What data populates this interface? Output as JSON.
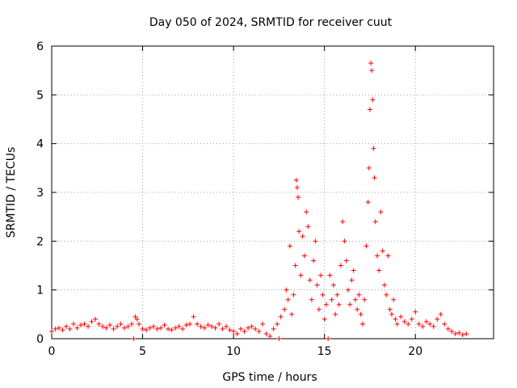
{
  "chart_data": {
    "type": "scatter",
    "title": "Day 050 of 2024, SRMTID for receiver cuut",
    "xlabel": "GPS time / hours",
    "ylabel": "SRMTID / TECUs",
    "xlim": [
      0,
      24.3
    ],
    "ylim": [
      0,
      6
    ],
    "xticks": [
      0,
      5,
      10,
      15,
      20
    ],
    "yticks": [
      0,
      1,
      2,
      3,
      4,
      5,
      6
    ],
    "grid": true,
    "marker": "plus",
    "color": "#ff0000",
    "series": [
      {
        "name": "SRMTID",
        "points": [
          [
            0.0,
            0.15
          ],
          [
            0.2,
            0.2
          ],
          [
            0.4,
            0.22
          ],
          [
            0.6,
            0.18
          ],
          [
            0.8,
            0.25
          ],
          [
            1.0,
            0.2
          ],
          [
            1.2,
            0.3
          ],
          [
            1.4,
            0.22
          ],
          [
            1.6,
            0.28
          ],
          [
            1.8,
            0.3
          ],
          [
            2.0,
            0.25
          ],
          [
            2.2,
            0.35
          ],
          [
            2.4,
            0.4
          ],
          [
            2.6,
            0.3
          ],
          [
            2.8,
            0.25
          ],
          [
            3.0,
            0.22
          ],
          [
            3.2,
            0.28
          ],
          [
            3.4,
            0.2
          ],
          [
            3.6,
            0.25
          ],
          [
            3.8,
            0.3
          ],
          [
            4.0,
            0.22
          ],
          [
            4.2,
            0.25
          ],
          [
            4.4,
            0.3
          ],
          [
            4.5,
            0.0
          ],
          [
            4.6,
            0.45
          ],
          [
            4.7,
            0.4
          ],
          [
            4.8,
            0.3
          ],
          [
            5.0,
            0.2
          ],
          [
            5.2,
            0.18
          ],
          [
            5.4,
            0.22
          ],
          [
            5.6,
            0.25
          ],
          [
            5.8,
            0.2
          ],
          [
            6.0,
            0.22
          ],
          [
            6.2,
            0.28
          ],
          [
            6.4,
            0.2
          ],
          [
            6.6,
            0.18
          ],
          [
            6.8,
            0.22
          ],
          [
            7.0,
            0.25
          ],
          [
            7.2,
            0.2
          ],
          [
            7.4,
            0.28
          ],
          [
            7.6,
            0.3
          ],
          [
            7.8,
            0.45
          ],
          [
            8.0,
            0.3
          ],
          [
            8.2,
            0.25
          ],
          [
            8.4,
            0.22
          ],
          [
            8.6,
            0.28
          ],
          [
            8.8,
            0.25
          ],
          [
            9.0,
            0.22
          ],
          [
            9.2,
            0.3
          ],
          [
            9.4,
            0.2
          ],
          [
            9.6,
            0.25
          ],
          [
            9.8,
            0.18
          ],
          [
            10.0,
            0.15
          ],
          [
            10.2,
            0.1
          ],
          [
            10.4,
            0.2
          ],
          [
            10.6,
            0.15
          ],
          [
            10.8,
            0.22
          ],
          [
            11.0,
            0.25
          ],
          [
            11.2,
            0.2
          ],
          [
            11.4,
            0.15
          ],
          [
            11.6,
            0.3
          ],
          [
            11.8,
            0.1
          ],
          [
            12.0,
            0.05
          ],
          [
            12.2,
            0.2
          ],
          [
            12.4,
            0.3
          ],
          [
            12.5,
            0.0
          ],
          [
            12.6,
            0.45
          ],
          [
            12.8,
            0.6
          ],
          [
            12.9,
            1.0
          ],
          [
            13.0,
            0.8
          ],
          [
            13.1,
            1.9
          ],
          [
            13.2,
            0.5
          ],
          [
            13.3,
            0.9
          ],
          [
            13.4,
            1.5
          ],
          [
            13.45,
            3.25
          ],
          [
            13.5,
            3.1
          ],
          [
            13.55,
            2.9
          ],
          [
            13.6,
            2.2
          ],
          [
            13.7,
            1.3
          ],
          [
            13.8,
            2.1
          ],
          [
            13.9,
            1.7
          ],
          [
            14.0,
            2.6
          ],
          [
            14.1,
            2.3
          ],
          [
            14.2,
            1.2
          ],
          [
            14.3,
            0.8
          ],
          [
            14.4,
            1.6
          ],
          [
            14.5,
            2.0
          ],
          [
            14.6,
            1.1
          ],
          [
            14.7,
            0.6
          ],
          [
            14.8,
            1.3
          ],
          [
            14.9,
            0.9
          ],
          [
            15.0,
            0.4
          ],
          [
            15.1,
            0.7
          ],
          [
            15.2,
            0.0
          ],
          [
            15.3,
            1.3
          ],
          [
            15.4,
            0.8
          ],
          [
            15.5,
            1.1
          ],
          [
            15.6,
            0.5
          ],
          [
            15.7,
            0.9
          ],
          [
            15.8,
            0.7
          ],
          [
            15.9,
            1.5
          ],
          [
            16.0,
            2.4
          ],
          [
            16.1,
            2.0
          ],
          [
            16.2,
            1.6
          ],
          [
            16.3,
            1.0
          ],
          [
            16.4,
            0.7
          ],
          [
            16.5,
            1.2
          ],
          [
            16.6,
            1.4
          ],
          [
            16.7,
            0.8
          ],
          [
            16.8,
            0.6
          ],
          [
            16.9,
            0.9
          ],
          [
            17.0,
            0.5
          ],
          [
            17.1,
            0.3
          ],
          [
            17.2,
            0.8
          ],
          [
            17.3,
            1.9
          ],
          [
            17.4,
            2.8
          ],
          [
            17.45,
            3.5
          ],
          [
            17.5,
            4.7
          ],
          [
            17.55,
            5.65
          ],
          [
            17.6,
            5.5
          ],
          [
            17.65,
            4.9
          ],
          [
            17.7,
            3.9
          ],
          [
            17.75,
            3.3
          ],
          [
            17.8,
            2.4
          ],
          [
            17.9,
            1.7
          ],
          [
            18.0,
            1.4
          ],
          [
            18.1,
            2.6
          ],
          [
            18.2,
            1.8
          ],
          [
            18.3,
            1.1
          ],
          [
            18.4,
            0.9
          ],
          [
            18.5,
            1.7
          ],
          [
            18.6,
            0.6
          ],
          [
            18.7,
            0.5
          ],
          [
            18.8,
            0.8
          ],
          [
            18.9,
            0.4
          ],
          [
            19.0,
            0.3
          ],
          [
            19.2,
            0.45
          ],
          [
            19.4,
            0.35
          ],
          [
            19.6,
            0.3
          ],
          [
            19.8,
            0.4
          ],
          [
            20.0,
            0.55
          ],
          [
            20.2,
            0.3
          ],
          [
            20.4,
            0.25
          ],
          [
            20.6,
            0.35
          ],
          [
            20.8,
            0.3
          ],
          [
            21.0,
            0.25
          ],
          [
            21.2,
            0.4
          ],
          [
            21.4,
            0.5
          ],
          [
            21.6,
            0.3
          ],
          [
            21.8,
            0.2
          ],
          [
            22.0,
            0.15
          ],
          [
            22.2,
            0.1
          ],
          [
            22.4,
            0.12
          ],
          [
            22.6,
            0.08
          ],
          [
            22.8,
            0.1
          ]
        ]
      }
    ]
  }
}
